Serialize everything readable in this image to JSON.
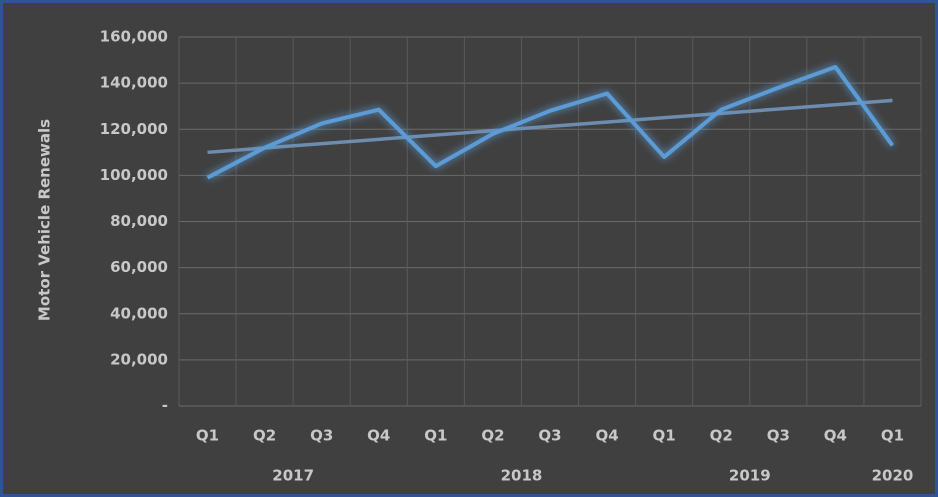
{
  "chart_data": {
    "type": "line",
    "y_axis_label": "Motor Vehicle Renewals",
    "categories": [
      "Q1",
      "Q2",
      "Q3",
      "Q4",
      "Q1",
      "Q2",
      "Q3",
      "Q4",
      "Q1",
      "Q2",
      "Q3",
      "Q4",
      "Q1"
    ],
    "groups": [
      {
        "label": "2017",
        "span": 4
      },
      {
        "label": "2018",
        "span": 4
      },
      {
        "label": "2019",
        "span": 4
      },
      {
        "label": "2020",
        "span": 1
      }
    ],
    "series": [
      {
        "color": "#5b9bd5",
        "values": [
          99000,
          112000,
          122500,
          128500,
          104000,
          118000,
          128000,
          135500,
          108000,
          128500,
          138000,
          147000,
          113000
        ]
      }
    ],
    "trendline": {
      "color": "#6d8db0",
      "values": [
        110000,
        132500
      ]
    },
    "ylim": [
      0,
      160000
    ],
    "yticks": [
      {
        "value": 0,
        "label": "-"
      },
      {
        "value": 20000,
        "label": "20,000"
      },
      {
        "value": 40000,
        "label": "40,000"
      },
      {
        "value": 60000,
        "label": "60,000"
      },
      {
        "value": 80000,
        "label": "80,000"
      },
      {
        "value": 100000,
        "label": "100,000"
      },
      {
        "value": 120000,
        "label": "120,000"
      },
      {
        "value": 140000,
        "label": "140,000"
      },
      {
        "value": 160000,
        "label": "160,000"
      }
    ],
    "grid": true
  }
}
